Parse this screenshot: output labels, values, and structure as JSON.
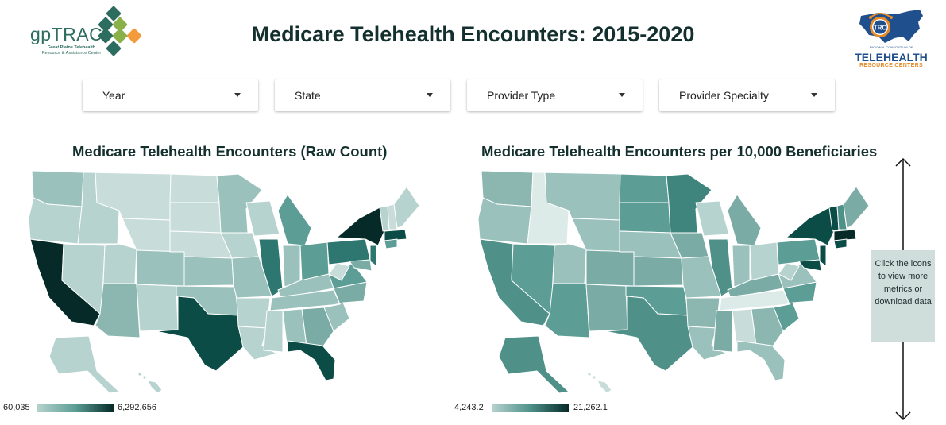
{
  "header": {
    "title": "Medicare Telehealth Encounters: 2015-2020",
    "left_logo": {
      "word": "gpTRAC",
      "line1": "Great Plains Telehealth",
      "line2": "Resource & Assistance Center",
      "icon": "diamond-cluster-logo"
    },
    "right_logo": {
      "badge": "TRC",
      "line0": "NATIONAL CONSORTIUM OF",
      "line1": "TELEHEALTH",
      "line2": "RESOURCE CENTERS",
      "icon": "us-map-logo"
    }
  },
  "filters": [
    {
      "label": "Year"
    },
    {
      "label": "State"
    },
    {
      "label": "Provider Type"
    },
    {
      "label": "Provider Specialty"
    }
  ],
  "maps": {
    "raw": {
      "title": "Medicare Telehealth Encounters (Raw Count)",
      "legend_min": "60,035",
      "legend_max": "6,292,656"
    },
    "per_capita": {
      "title": "Medicare Telehealth Encounters per 10,000 Beneficiaries",
      "legend_min": "4,243.2",
      "legend_max": "21,262.1"
    }
  },
  "info": {
    "text": "Click the icons to view more metrics or download data"
  },
  "colors": {
    "light": "#b7d3cf",
    "mid": "#5c9e96",
    "dark": "#0b4c46",
    "darkest": "#062a28"
  }
}
